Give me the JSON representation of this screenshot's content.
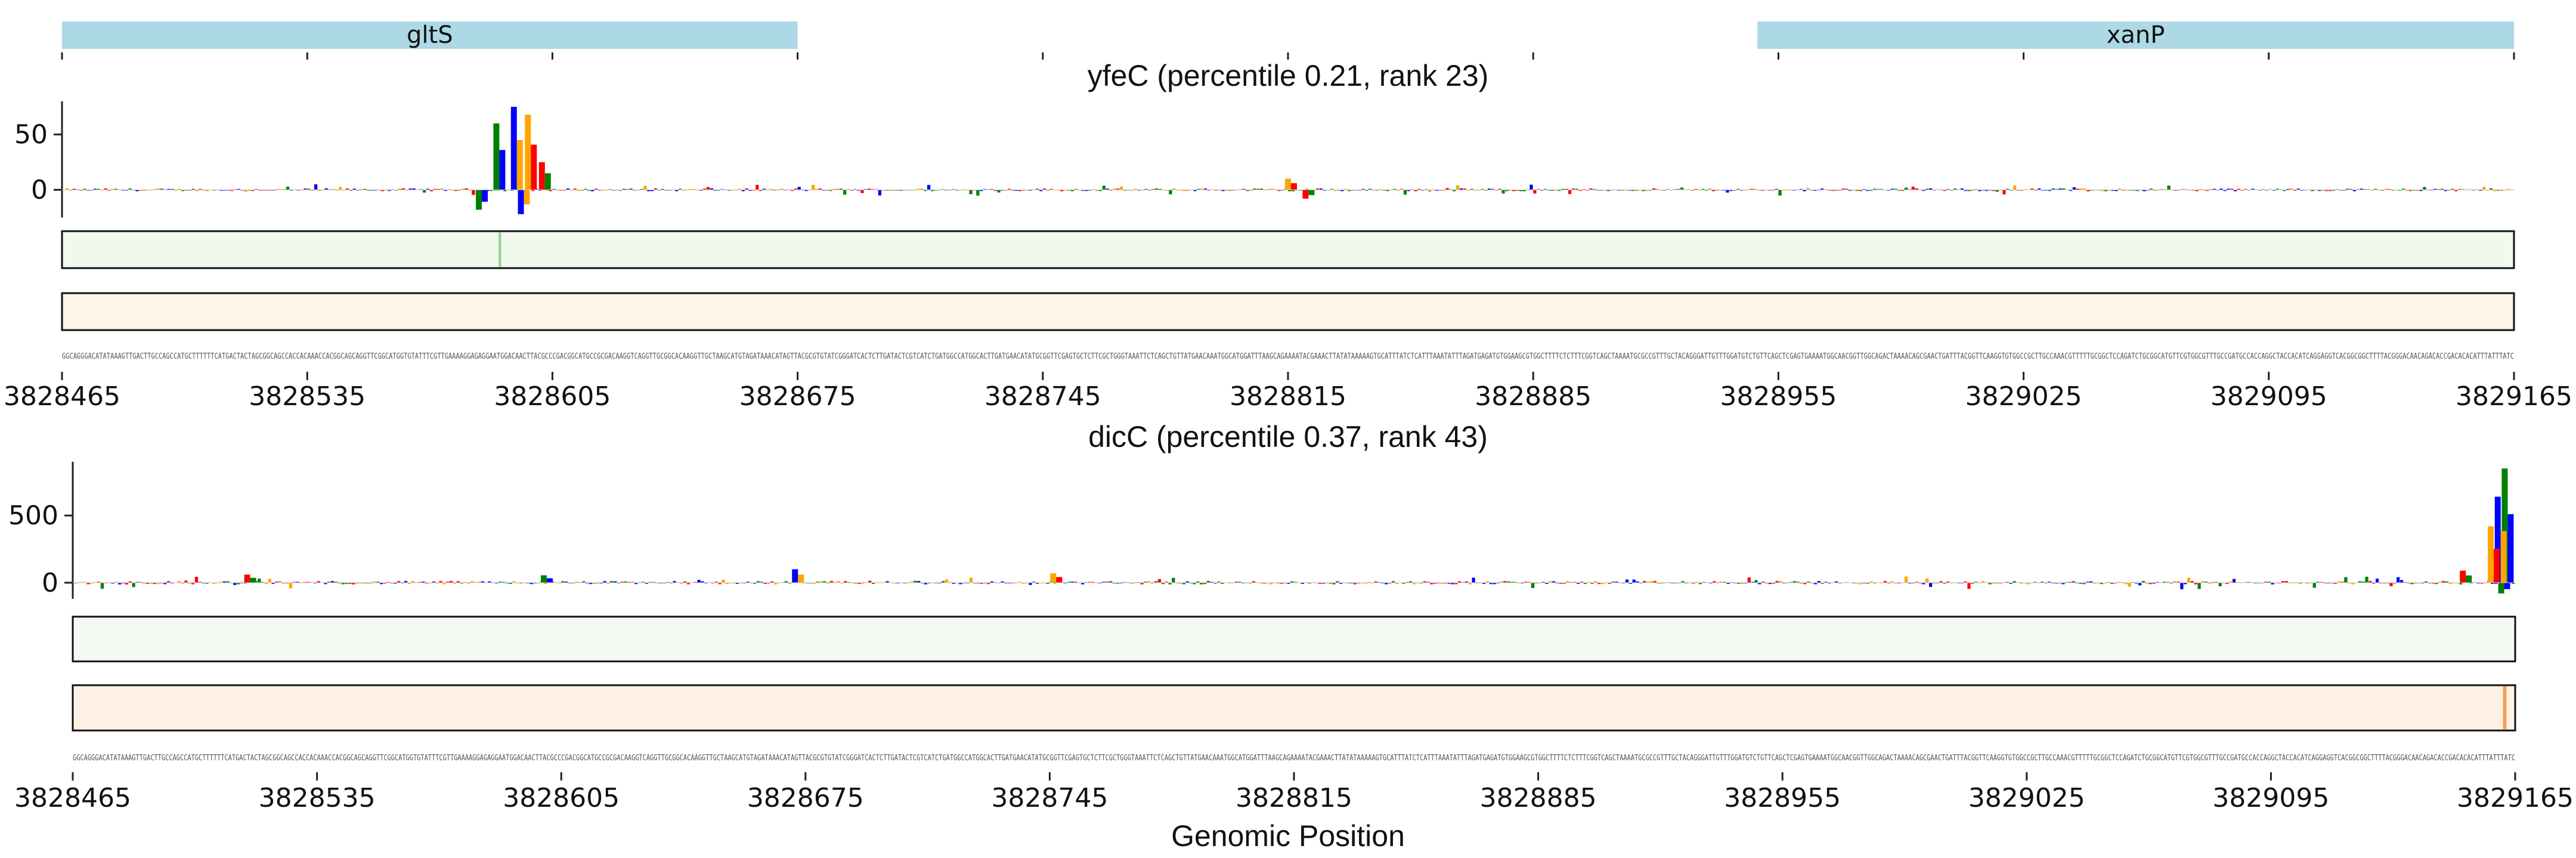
{
  "chart_data": {
    "type": "genome-track",
    "genes": [
      {
        "name": "gltS",
        "start": 3828465,
        "end": 3828675
      },
      {
        "name": "xanP",
        "start": 3828949,
        "end": 3829165
      }
    ],
    "gene_color": "#add8e6",
    "x_range": [
      3828465,
      3829165
    ],
    "x_ticks": [
      "3828465",
      "3828535",
      "3828605",
      "3828675",
      "3828745",
      "3828815",
      "3828885",
      "3828955",
      "3829025",
      "3829095",
      "3829165"
    ],
    "xlabel": "Genomic Position",
    "base_colors": {
      "A": "#008000",
      "C": "#0000ff",
      "G": "#ffa500",
      "T": "#ff0000"
    },
    "sequence": "GGCAGGGACATATAAAGTTGACTTGCCAGCCATGCTTTTTTCATGACTACTAGCGGCAGCCACCACAAACCACGGCAGCAGGTTCGGCATGGTGTATTTCGTTGAAAAGGAGAGGAATGGACAACTTACGCCCGACGGCATGCCGCGACAAGGTCAGGTTGCGGCACAAGGTTGCTAAGCATGTAGATAAACATAGTTACGCGTGTATCGGGATCACTCTTGATACTCGTCATCTGATGGCCATGGCACTTGATGAACATATGCGGTTCGAGTGCTCTTCGCTGGGTAAATTCTCAGCTGTTATGAACAAATGGCATGGATTTAAGCAGAAAATACGAAACTTATATAAAAAGTGCATTTATCTCATTTAAATATTTAGATGAGATGTGGAAGCGTGGCTTTTCTCTTTCGGTCAGCTAAAATGCGCCGTTTGCTACAGGGATTGTTTGGATGTCTGTTCAGCTCGAGTGAAAATGGCAACGGTTGGCAGACTAAAACAGCGAACTGATTTACGGTTCAAGGTGTGGCCGCTTGCCAAACGTTTTTGCGGCTCCAGATCTGCGGCATGTTCGTGGCGTTTGCCGATGCCACCAGGCTACCACATCAGGAGGTCACGGCGGCTTTTACGGGACAACAGACACCGACACACATTTATTTATC",
    "panels": [
      {
        "title": "yfeC (percentile 0.21, rank 23)",
        "y_ticks": [
          0,
          50
        ],
        "y_range": [
          -25,
          80
        ],
        "attribution_peaks": [
          {
            "position": 3828589,
            "value": 60
          },
          {
            "position": 3828594,
            "value": 75
          },
          {
            "position": 3828598,
            "value": 68
          },
          {
            "position": 3828602,
            "value": 25
          },
          {
            "position": 3828584,
            "value": -18
          },
          {
            "position": 3828596,
            "value": -22
          },
          {
            "position": 3828815,
            "value": 10
          },
          {
            "position": 3828820,
            "value": -8
          }
        ],
        "track2_color": "#f1f8ee",
        "track2_highlight_position": 3828590,
        "track3_color": "#fff4e8"
      },
      {
        "title": "dicC (percentile 0.37, rank 43)",
        "y_ticks": [
          0,
          500
        ],
        "y_range": [
          -120,
          900
        ],
        "attribution_peaks": [
          {
            "position": 3829162,
            "value": 850
          },
          {
            "position": 3829160,
            "value": 640
          },
          {
            "position": 3829158,
            "value": 420
          },
          {
            "position": 3828515,
            "value": 60
          },
          {
            "position": 3828600,
            "value": 55
          },
          {
            "position": 3828672,
            "value": 100
          },
          {
            "position": 3828746,
            "value": 70
          },
          {
            "position": 3829150,
            "value": 90
          },
          {
            "position": 3829161,
            "value": -80
          }
        ],
        "track2_color": "#f4faf1",
        "track3_color": "#fff2e4",
        "track3_highlight_position": 3829162
      }
    ]
  }
}
